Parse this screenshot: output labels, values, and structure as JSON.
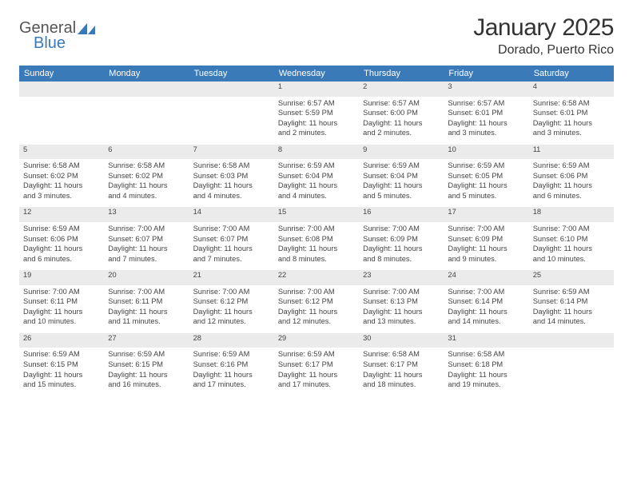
{
  "brand": {
    "part1": "General",
    "part2": "Blue"
  },
  "title": "January 2025",
  "location": "Dorado, Puerto Rico",
  "header_bg": "#3a7ab8",
  "daynum_bg": "#ebebeb",
  "divider_color": "#3a7ab8",
  "days_of_week": [
    "Sunday",
    "Monday",
    "Tuesday",
    "Wednesday",
    "Thursday",
    "Friday",
    "Saturday"
  ],
  "weeks": [
    {
      "nums": [
        "",
        "",
        "",
        "1",
        "2",
        "3",
        "4"
      ],
      "cells": [
        null,
        null,
        null,
        {
          "sunrise": "Sunrise: 6:57 AM",
          "sunset": "Sunset: 5:59 PM",
          "day1": "Daylight: 11 hours",
          "day2": "and 2 minutes."
        },
        {
          "sunrise": "Sunrise: 6:57 AM",
          "sunset": "Sunset: 6:00 PM",
          "day1": "Daylight: 11 hours",
          "day2": "and 2 minutes."
        },
        {
          "sunrise": "Sunrise: 6:57 AM",
          "sunset": "Sunset: 6:01 PM",
          "day1": "Daylight: 11 hours",
          "day2": "and 3 minutes."
        },
        {
          "sunrise": "Sunrise: 6:58 AM",
          "sunset": "Sunset: 6:01 PM",
          "day1": "Daylight: 11 hours",
          "day2": "and 3 minutes."
        }
      ]
    },
    {
      "nums": [
        "5",
        "6",
        "7",
        "8",
        "9",
        "10",
        "11"
      ],
      "cells": [
        {
          "sunrise": "Sunrise: 6:58 AM",
          "sunset": "Sunset: 6:02 PM",
          "day1": "Daylight: 11 hours",
          "day2": "and 3 minutes."
        },
        {
          "sunrise": "Sunrise: 6:58 AM",
          "sunset": "Sunset: 6:02 PM",
          "day1": "Daylight: 11 hours",
          "day2": "and 4 minutes."
        },
        {
          "sunrise": "Sunrise: 6:58 AM",
          "sunset": "Sunset: 6:03 PM",
          "day1": "Daylight: 11 hours",
          "day2": "and 4 minutes."
        },
        {
          "sunrise": "Sunrise: 6:59 AM",
          "sunset": "Sunset: 6:04 PM",
          "day1": "Daylight: 11 hours",
          "day2": "and 4 minutes."
        },
        {
          "sunrise": "Sunrise: 6:59 AM",
          "sunset": "Sunset: 6:04 PM",
          "day1": "Daylight: 11 hours",
          "day2": "and 5 minutes."
        },
        {
          "sunrise": "Sunrise: 6:59 AM",
          "sunset": "Sunset: 6:05 PM",
          "day1": "Daylight: 11 hours",
          "day2": "and 5 minutes."
        },
        {
          "sunrise": "Sunrise: 6:59 AM",
          "sunset": "Sunset: 6:06 PM",
          "day1": "Daylight: 11 hours",
          "day2": "and 6 minutes."
        }
      ]
    },
    {
      "nums": [
        "12",
        "13",
        "14",
        "15",
        "16",
        "17",
        "18"
      ],
      "cells": [
        {
          "sunrise": "Sunrise: 6:59 AM",
          "sunset": "Sunset: 6:06 PM",
          "day1": "Daylight: 11 hours",
          "day2": "and 6 minutes."
        },
        {
          "sunrise": "Sunrise: 7:00 AM",
          "sunset": "Sunset: 6:07 PM",
          "day1": "Daylight: 11 hours",
          "day2": "and 7 minutes."
        },
        {
          "sunrise": "Sunrise: 7:00 AM",
          "sunset": "Sunset: 6:07 PM",
          "day1": "Daylight: 11 hours",
          "day2": "and 7 minutes."
        },
        {
          "sunrise": "Sunrise: 7:00 AM",
          "sunset": "Sunset: 6:08 PM",
          "day1": "Daylight: 11 hours",
          "day2": "and 8 minutes."
        },
        {
          "sunrise": "Sunrise: 7:00 AM",
          "sunset": "Sunset: 6:09 PM",
          "day1": "Daylight: 11 hours",
          "day2": "and 8 minutes."
        },
        {
          "sunrise": "Sunrise: 7:00 AM",
          "sunset": "Sunset: 6:09 PM",
          "day1": "Daylight: 11 hours",
          "day2": "and 9 minutes."
        },
        {
          "sunrise": "Sunrise: 7:00 AM",
          "sunset": "Sunset: 6:10 PM",
          "day1": "Daylight: 11 hours",
          "day2": "and 10 minutes."
        }
      ]
    },
    {
      "nums": [
        "19",
        "20",
        "21",
        "22",
        "23",
        "24",
        "25"
      ],
      "cells": [
        {
          "sunrise": "Sunrise: 7:00 AM",
          "sunset": "Sunset: 6:11 PM",
          "day1": "Daylight: 11 hours",
          "day2": "and 10 minutes."
        },
        {
          "sunrise": "Sunrise: 7:00 AM",
          "sunset": "Sunset: 6:11 PM",
          "day1": "Daylight: 11 hours",
          "day2": "and 11 minutes."
        },
        {
          "sunrise": "Sunrise: 7:00 AM",
          "sunset": "Sunset: 6:12 PM",
          "day1": "Daylight: 11 hours",
          "day2": "and 12 minutes."
        },
        {
          "sunrise": "Sunrise: 7:00 AM",
          "sunset": "Sunset: 6:12 PM",
          "day1": "Daylight: 11 hours",
          "day2": "and 12 minutes."
        },
        {
          "sunrise": "Sunrise: 7:00 AM",
          "sunset": "Sunset: 6:13 PM",
          "day1": "Daylight: 11 hours",
          "day2": "and 13 minutes."
        },
        {
          "sunrise": "Sunrise: 7:00 AM",
          "sunset": "Sunset: 6:14 PM",
          "day1": "Daylight: 11 hours",
          "day2": "and 14 minutes."
        },
        {
          "sunrise": "Sunrise: 6:59 AM",
          "sunset": "Sunset: 6:14 PM",
          "day1": "Daylight: 11 hours",
          "day2": "and 14 minutes."
        }
      ]
    },
    {
      "nums": [
        "26",
        "27",
        "28",
        "29",
        "30",
        "31",
        ""
      ],
      "cells": [
        {
          "sunrise": "Sunrise: 6:59 AM",
          "sunset": "Sunset: 6:15 PM",
          "day1": "Daylight: 11 hours",
          "day2": "and 15 minutes."
        },
        {
          "sunrise": "Sunrise: 6:59 AM",
          "sunset": "Sunset: 6:15 PM",
          "day1": "Daylight: 11 hours",
          "day2": "and 16 minutes."
        },
        {
          "sunrise": "Sunrise: 6:59 AM",
          "sunset": "Sunset: 6:16 PM",
          "day1": "Daylight: 11 hours",
          "day2": "and 17 minutes."
        },
        {
          "sunrise": "Sunrise: 6:59 AM",
          "sunset": "Sunset: 6:17 PM",
          "day1": "Daylight: 11 hours",
          "day2": "and 17 minutes."
        },
        {
          "sunrise": "Sunrise: 6:58 AM",
          "sunset": "Sunset: 6:17 PM",
          "day1": "Daylight: 11 hours",
          "day2": "and 18 minutes."
        },
        {
          "sunrise": "Sunrise: 6:58 AM",
          "sunset": "Sunset: 6:18 PM",
          "day1": "Daylight: 11 hours",
          "day2": "and 19 minutes."
        },
        null
      ]
    }
  ]
}
